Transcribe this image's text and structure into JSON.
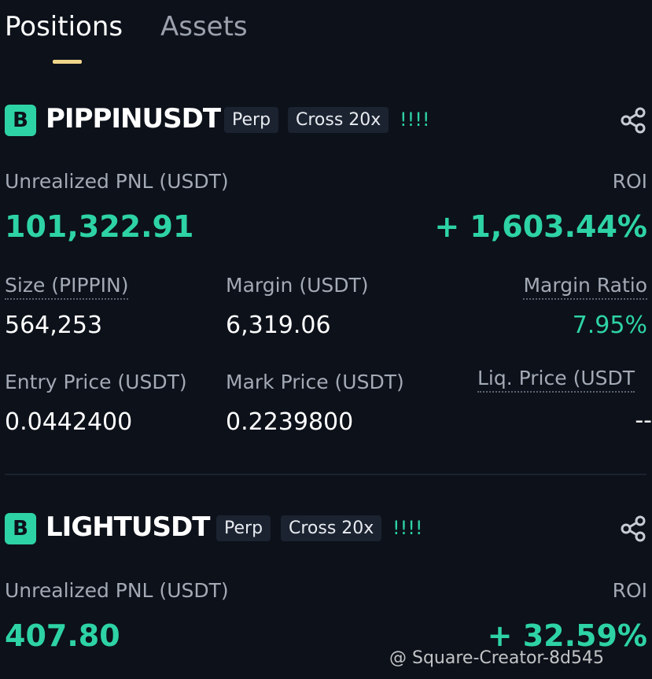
{
  "tabs": [
    "Positions",
    "Assets"
  ],
  "positions": [
    {
      "badge": "B",
      "symbol": "PIPPINUSDT",
      "tags": [
        "Perp",
        "Cross 20x"
      ],
      "warning": "!!!!",
      "pnl_label": "Unrealized PNL (USDT)",
      "pnl": "101,322.91",
      "roi_label": "ROI",
      "roi": "+ 1,603.44%",
      "fields": [
        [
          "Size (PIPPIN)",
          "564,253"
        ],
        [
          "Margin (USDT)",
          "6,319.06"
        ],
        [
          "Margin Ratio",
          "7.95%"
        ],
        [
          "Entry Price (USDT)",
          "0.0442400"
        ],
        [
          "Mark Price (USDT)",
          "0.2239800"
        ],
        [
          "Liq. Price (USDT",
          "--"
        ]
      ]
    },
    {
      "badge": "B",
      "symbol": "LIGHTUSDT",
      "tags": [
        "Perp",
        "Cross 20x"
      ],
      "warning": "!!!!",
      "pnl_label": "Unrealized PNL (USDT)",
      "pnl": "407.80",
      "roi_label": "ROI",
      "roi": "+ 32.59%"
    }
  ],
  "watermark": "@ Square-Creator-8d545"
}
